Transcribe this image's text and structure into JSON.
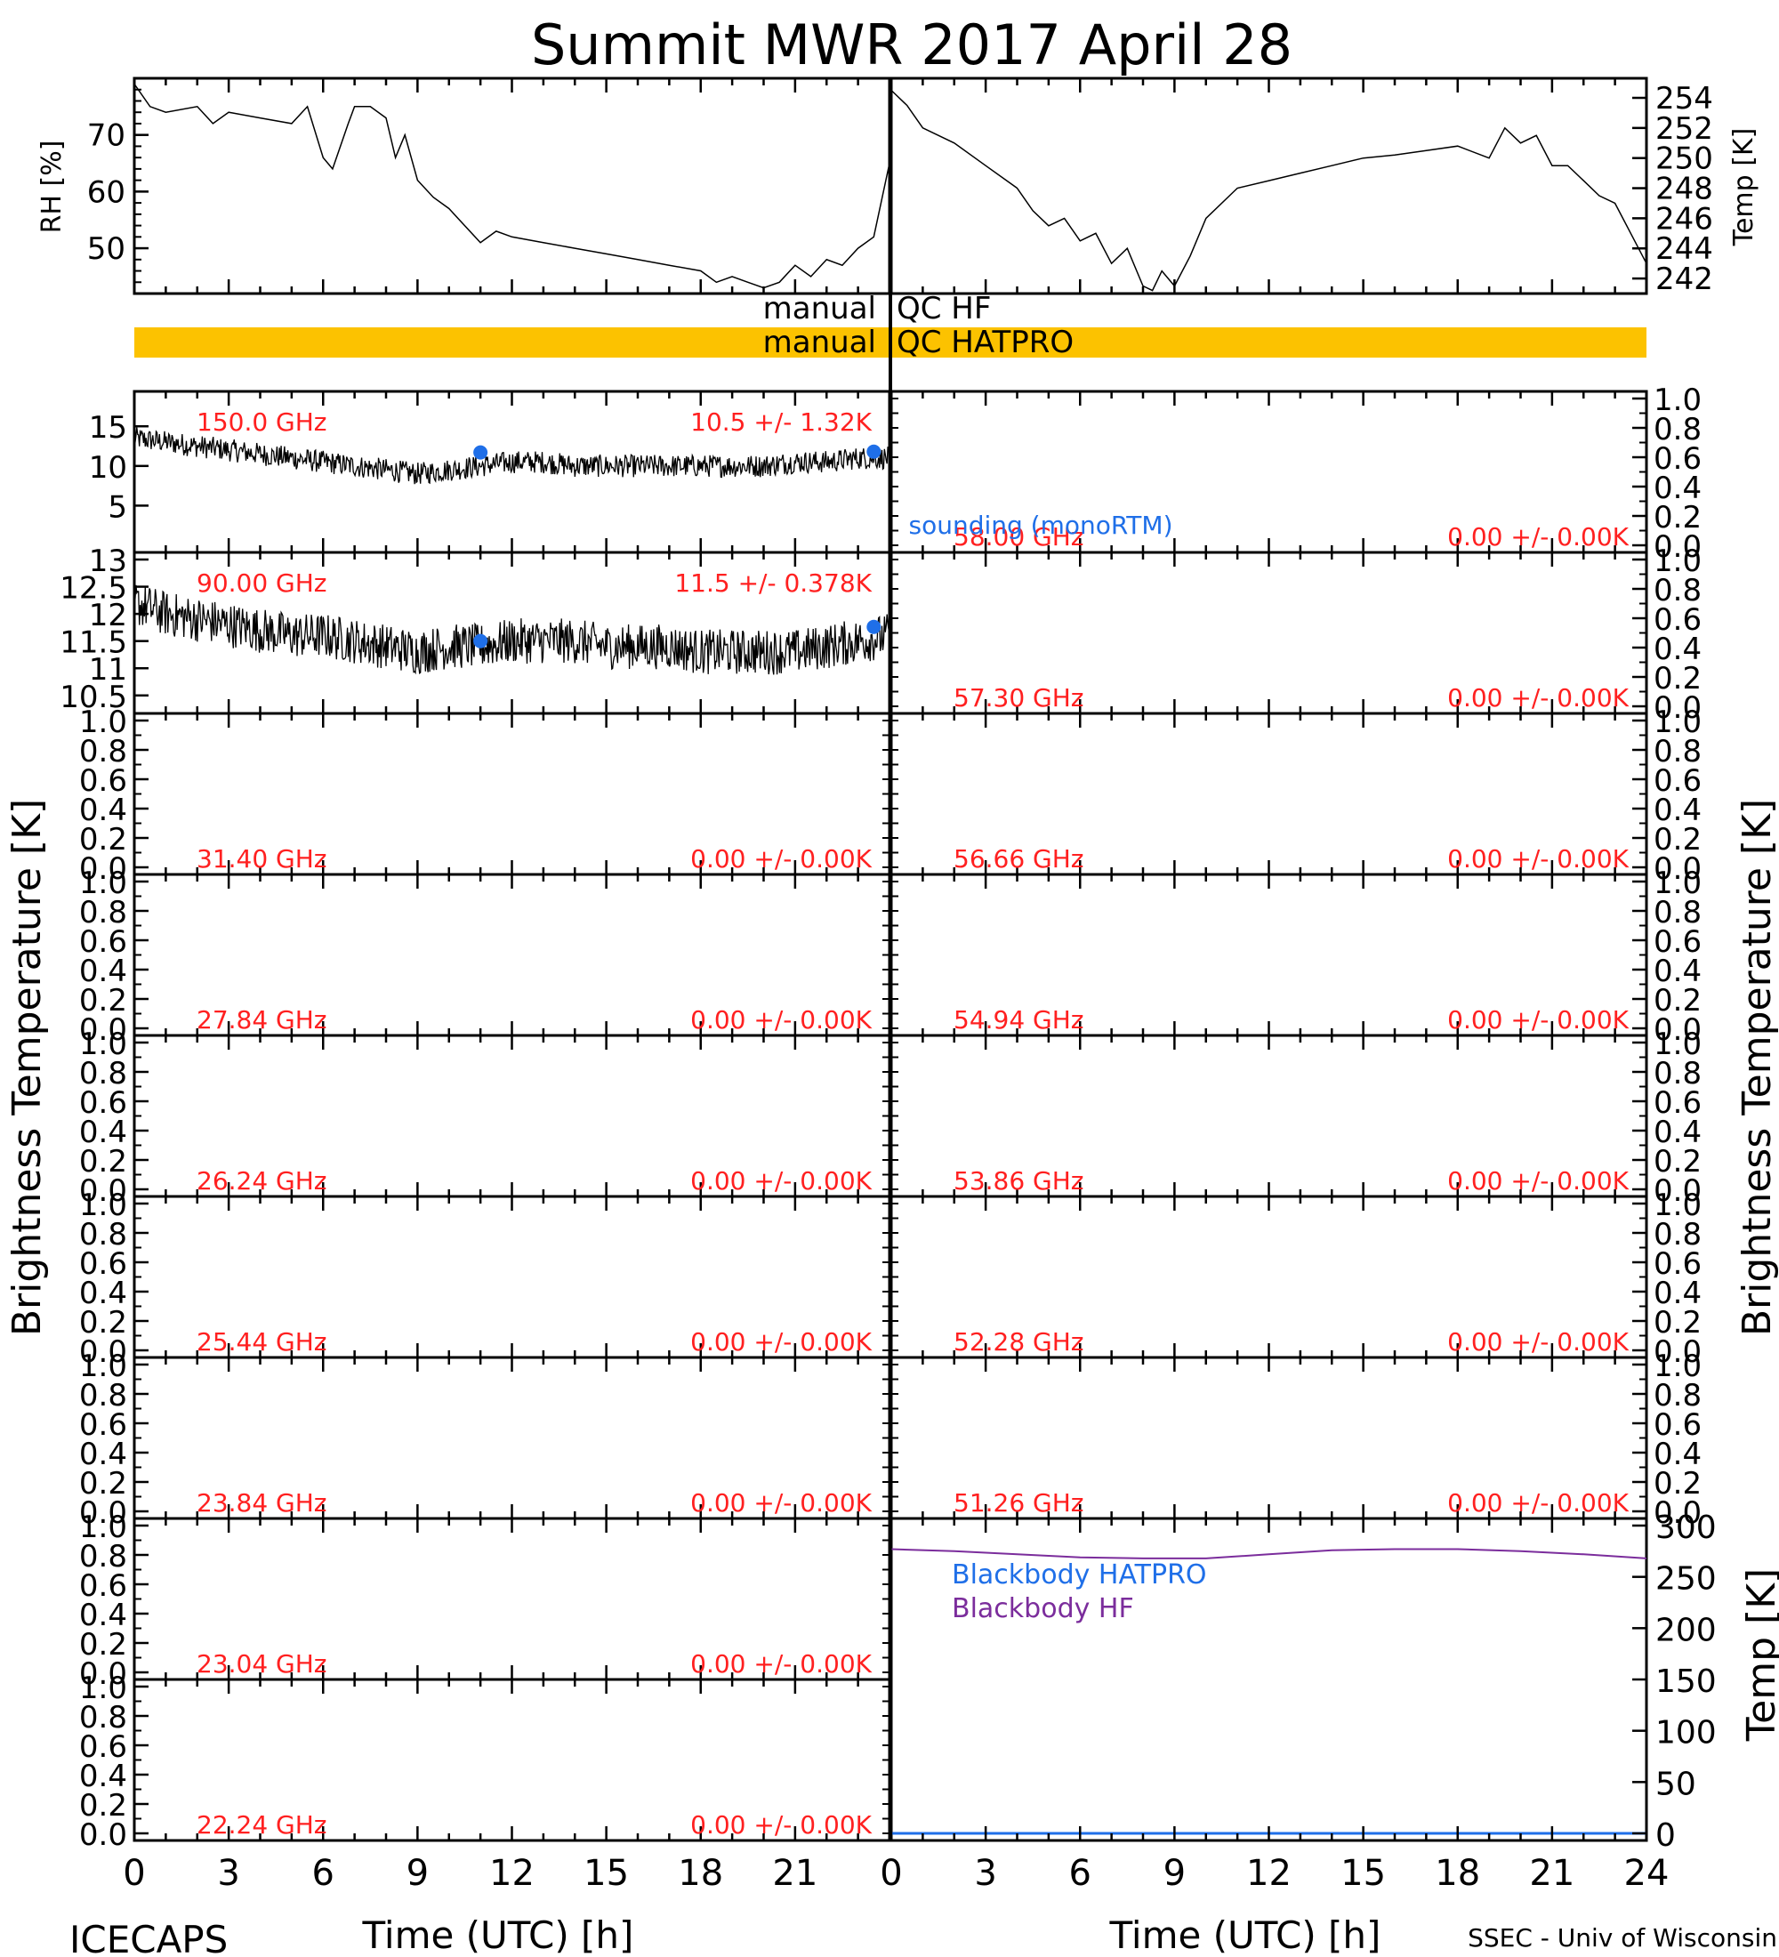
{
  "title": "Summit MWR 2017 April 28",
  "footer": {
    "left": "ICECAPS",
    "right": "SSEC - Univ of Wisconsin",
    "xlabel": "Time (UTC) [h]"
  },
  "colors": {
    "background": "#ffffff",
    "axes": "#000000",
    "label_red": "#ff2020",
    "sounding_blue": "#1f6fe8",
    "qc_bar": "#fcc200",
    "blackbody_hf": "#7b2d9c",
    "blackbody_hatpro": "#1f6fe8"
  },
  "ylabels": {
    "rh": "RH [%]",
    "temp": "Temp [K]",
    "tb": "Brightness Temperature [K]",
    "bb_temp": "Temp [K]"
  },
  "qc": {
    "hf_label": "manual QC HF",
    "hatpro_label": "manual QC HATPRO",
    "hatpro_flagged_range_h": [
      0,
      24
    ]
  },
  "sounding_label": "sounding (monoRTM)",
  "blackbody_labels": {
    "hatpro": "Blackbody HATPRO",
    "hf": "Blackbody HF"
  },
  "chart_data": [
    {
      "id": "rh",
      "type": "line",
      "ylabel": "RH [%]",
      "xlim": [
        0,
        24
      ],
      "ylim": [
        42,
        80
      ],
      "yticks": [
        50,
        60,
        70
      ],
      "x": [
        0,
        0.5,
        1,
        2,
        2.5,
        3,
        4,
        5,
        5.5,
        6,
        6.3,
        6.8,
        7,
        7.5,
        8,
        8.3,
        8.6,
        9,
        9.5,
        10,
        10.5,
        11,
        11.5,
        12,
        13,
        14,
        15,
        16,
        17,
        18,
        18.5,
        19,
        19.5,
        20,
        20.5,
        21,
        21.5,
        22,
        22.5,
        23,
        23.5,
        24
      ],
      "y": [
        79,
        75,
        74,
        75,
        72,
        74,
        73,
        72,
        75,
        66,
        64,
        72,
        75,
        75,
        73,
        66,
        70,
        62,
        59,
        57,
        54,
        51,
        53,
        52,
        51,
        50,
        49,
        48,
        47,
        46,
        44,
        45,
        44,
        43,
        44,
        47,
        45,
        48,
        47,
        50,
        52,
        65
      ]
    },
    {
      "id": "temp",
      "type": "line",
      "ylabel": "Temp [K]",
      "xlim": [
        0,
        24
      ],
      "ylim": [
        241,
        255.3
      ],
      "yticks": [
        242,
        244,
        246,
        248,
        250,
        252,
        254
      ],
      "x": [
        0,
        0.5,
        1,
        2,
        3,
        4,
        4.5,
        5,
        5.5,
        6,
        6.5,
        7,
        7.5,
        8,
        8.3,
        8.6,
        9,
        9.5,
        10,
        11,
        12,
        13,
        14,
        15,
        16,
        17,
        18,
        19,
        19.5,
        20,
        20.5,
        21,
        21.5,
        22,
        22.5,
        23,
        23.5,
        24
      ],
      "y": [
        254.5,
        253.5,
        252,
        251,
        249.5,
        248,
        246.5,
        245.5,
        246,
        244.5,
        245,
        243,
        244,
        241.5,
        241.2,
        242.5,
        241.5,
        243.5,
        246,
        248,
        248.5,
        249,
        249.5,
        250,
        250.2,
        250.5,
        250.8,
        250,
        252,
        251,
        251.5,
        249.5,
        249.5,
        248.5,
        247.5,
        247,
        245,
        243
      ]
    },
    {
      "id": "tb_150",
      "type": "line",
      "channel": "150.0 GHz",
      "stats": "10.5 +/- 1.32K",
      "ylim": [
        0,
        18.5
      ],
      "yticks": [
        5,
        10,
        15
      ],
      "x": [
        0,
        1,
        2,
        3,
        4,
        5,
        6,
        7,
        8,
        9,
        10,
        11,
        12,
        13,
        14,
        15,
        16,
        17,
        18,
        19,
        20,
        21,
        22,
        23,
        24
      ],
      "y": [
        13.5,
        13,
        12.5,
        12,
        11.5,
        11,
        10.5,
        10,
        9.5,
        9,
        9.5,
        10,
        10.5,
        10.5,
        10,
        10,
        10,
        10,
        10,
        10,
        10,
        10.5,
        10.5,
        11,
        11
      ],
      "noise": 1.3,
      "sounding": [
        {
          "x": 11,
          "y": 11.7
        },
        {
          "x": 23.5,
          "y": 11.8
        }
      ]
    },
    {
      "id": "tb_90",
      "type": "line",
      "channel": "90.00 GHz",
      "stats": "11.5 +/- 0.378K",
      "ylim": [
        10.3,
        13.0
      ],
      "yticks": [
        10.5,
        11.0,
        11.5,
        12.0,
        12.5,
        13.0
      ],
      "x": [
        0,
        1,
        2,
        3,
        4,
        5,
        6,
        7,
        8,
        9,
        10,
        11,
        12,
        13,
        14,
        15,
        16,
        17,
        18,
        19,
        20,
        21,
        22,
        23,
        24
      ],
      "y": [
        12.2,
        12.0,
        11.9,
        11.8,
        11.7,
        11.6,
        11.6,
        11.5,
        11.4,
        11.3,
        11.4,
        11.4,
        11.5,
        11.5,
        11.5,
        11.4,
        11.4,
        11.4,
        11.3,
        11.3,
        11.3,
        11.3,
        11.4,
        11.5,
        11.6
      ],
      "noise": 0.38,
      "sounding": [
        {
          "x": 11,
          "y": 11.5
        },
        {
          "x": 23.5,
          "y": 11.76
        }
      ]
    },
    {
      "id": "tb_58",
      "type": "line",
      "channel": "58.00 GHz",
      "stats": "0.00 +/- 0.00K",
      "ylim": [
        0,
        1
      ],
      "values": []
    },
    {
      "id": "tb_57",
      "type": "line",
      "channel": "57.30 GHz",
      "stats": "0.00 +/- 0.00K",
      "ylim": [
        0,
        1
      ],
      "values": []
    },
    {
      "id": "tb_31",
      "type": "line",
      "channel": "31.40 GHz",
      "stats": "0.00 +/- 0.00K",
      "ylim": [
        0,
        1
      ],
      "values": []
    },
    {
      "id": "tb_5666",
      "type": "line",
      "channel": "56.66 GHz",
      "stats": "0.00 +/- 0.00K",
      "ylim": [
        0,
        1
      ],
      "values": []
    },
    {
      "id": "tb_2784",
      "type": "line",
      "channel": "27.84 GHz",
      "stats": "0.00 +/- 0.00K",
      "ylim": [
        0,
        1
      ],
      "values": []
    },
    {
      "id": "tb_5494",
      "type": "line",
      "channel": "54.94 GHz",
      "stats": "0.00 +/- 0.00K",
      "ylim": [
        0,
        1
      ],
      "values": []
    },
    {
      "id": "tb_2624",
      "type": "line",
      "channel": "26.24 GHz",
      "stats": "0.00 +/- 0.00K",
      "ylim": [
        0,
        1
      ],
      "values": []
    },
    {
      "id": "tb_5386",
      "type": "line",
      "channel": "53.86 GHz",
      "stats": "0.00 +/- 0.00K",
      "ylim": [
        0,
        1
      ],
      "values": []
    },
    {
      "id": "tb_2544",
      "type": "line",
      "channel": "25.44 GHz",
      "stats": "0.00 +/- 0.00K",
      "ylim": [
        0,
        1
      ],
      "values": []
    },
    {
      "id": "tb_5228",
      "type": "line",
      "channel": "52.28 GHz",
      "stats": "0.00 +/- 0.00K",
      "ylim": [
        0,
        1
      ],
      "values": []
    },
    {
      "id": "tb_2384",
      "type": "line",
      "channel": "23.84 GHz",
      "stats": "0.00 +/- 0.00K",
      "ylim": [
        0,
        1
      ],
      "values": []
    },
    {
      "id": "tb_5126",
      "type": "line",
      "channel": "51.26 GHz",
      "stats": "0.00 +/- 0.00K",
      "ylim": [
        0,
        1
      ],
      "values": []
    },
    {
      "id": "tb_2304",
      "type": "line",
      "channel": "23.04 GHz",
      "stats": "0.00 +/- 0.00K",
      "ylim": [
        0,
        1
      ],
      "values": []
    },
    {
      "id": "tb_2224",
      "type": "line",
      "channel": "22.24 GHz",
      "stats": "0.00 +/- 0.00K",
      "ylim": [
        0,
        1
      ],
      "values": []
    },
    {
      "id": "blackbody",
      "type": "line",
      "ylabel": "Temp [K]",
      "xlim": [
        0,
        24
      ],
      "ylim": [
        0,
        300
      ],
      "yticks": [
        0,
        50,
        100,
        150,
        200,
        250,
        300
      ],
      "series": [
        {
          "name": "Blackbody HF",
          "x": [
            0,
            2,
            4,
            6,
            8,
            10,
            12,
            14,
            16,
            18,
            20,
            22,
            24
          ],
          "y": [
            277,
            275,
            272,
            269,
            268,
            268,
            272,
            276,
            277,
            277,
            275,
            272,
            268
          ]
        },
        {
          "name": "Blackbody HATPRO",
          "x": [
            0,
            24
          ],
          "y": [
            0,
            0
          ]
        }
      ]
    }
  ],
  "ylabels_small": [
    "0.0",
    "0.2",
    "0.4",
    "0.6",
    "0.8",
    "1.0"
  ],
  "xticks": [
    "0",
    "3",
    "6",
    "9",
    "12",
    "15",
    "18",
    "21",
    "24"
  ]
}
